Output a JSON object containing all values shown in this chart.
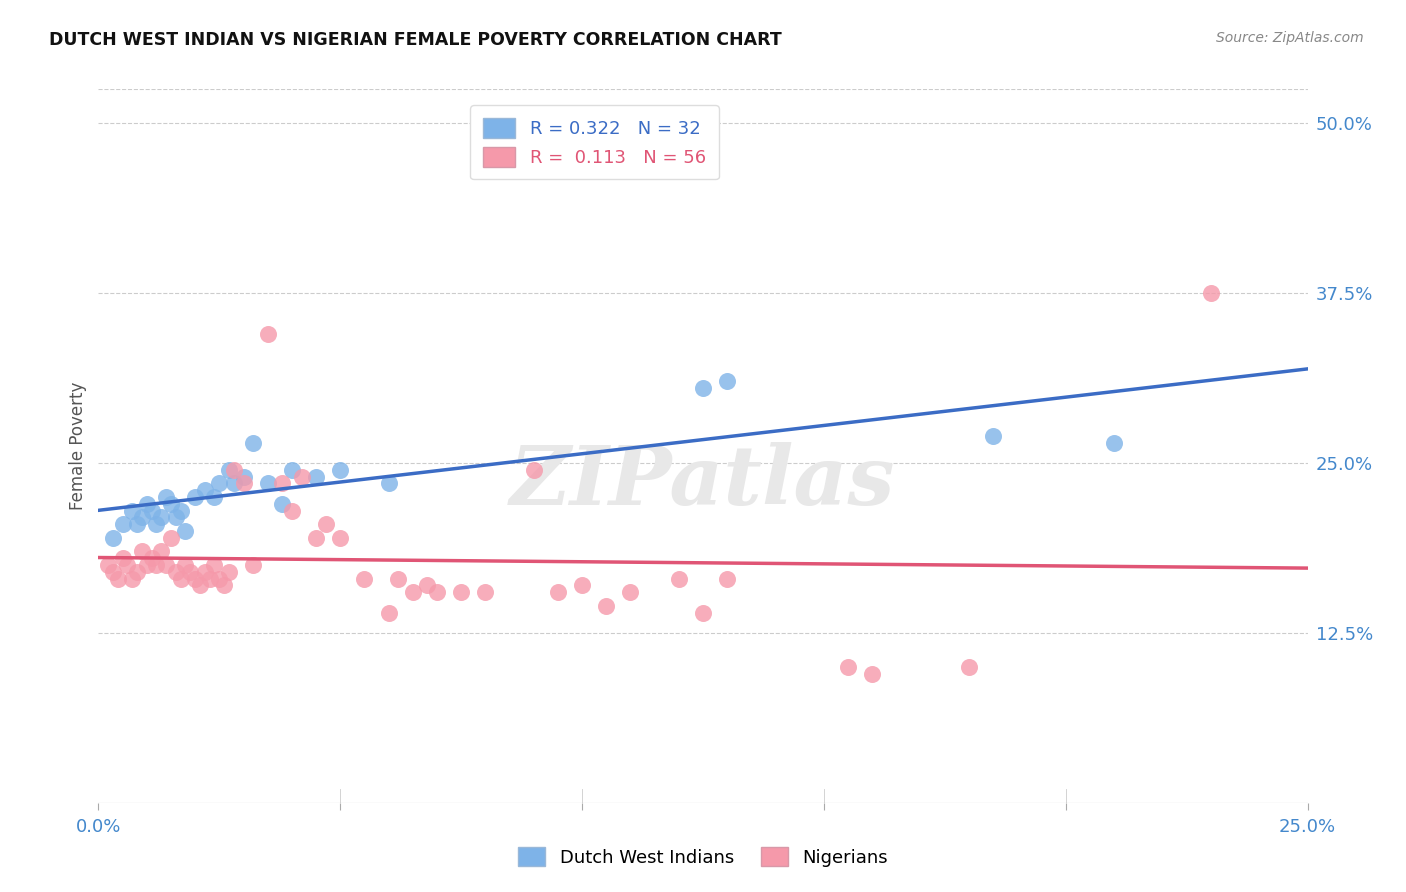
{
  "title": "DUTCH WEST INDIAN VS NIGERIAN FEMALE POVERTY CORRELATION CHART",
  "source": "Source: ZipAtlas.com",
  "ylabel": "Female Poverty",
  "ytick_labels": [
    "12.5%",
    "25.0%",
    "37.5%",
    "50.0%"
  ],
  "ytick_values": [
    0.125,
    0.25,
    0.375,
    0.5
  ],
  "xmin": 0.0,
  "xmax": 0.25,
  "ymin": 0.0,
  "ymax": 0.525,
  "blue_color": "#7EB3E8",
  "pink_color": "#F599AA",
  "blue_edge_color": "#5A8FC4",
  "pink_edge_color": "#E06080",
  "blue_line_color": "#3B6CC5",
  "pink_line_color": "#E05575",
  "blue_R": "0.322",
  "blue_N": "32",
  "pink_R": "0.113",
  "pink_N": "56",
  "legend_label_blue": "Dutch West Indians",
  "legend_label_pink": "Nigerians",
  "watermark": "ZIPatlas",
  "tick_color": "#4488CC",
  "blue_points": [
    [
      0.003,
      0.195
    ],
    [
      0.005,
      0.205
    ],
    [
      0.007,
      0.215
    ],
    [
      0.008,
      0.205
    ],
    [
      0.009,
      0.21
    ],
    [
      0.01,
      0.22
    ],
    [
      0.011,
      0.215
    ],
    [
      0.012,
      0.205
    ],
    [
      0.013,
      0.21
    ],
    [
      0.014,
      0.225
    ],
    [
      0.015,
      0.22
    ],
    [
      0.016,
      0.21
    ],
    [
      0.017,
      0.215
    ],
    [
      0.018,
      0.2
    ],
    [
      0.02,
      0.225
    ],
    [
      0.022,
      0.23
    ],
    [
      0.024,
      0.225
    ],
    [
      0.025,
      0.235
    ],
    [
      0.027,
      0.245
    ],
    [
      0.028,
      0.235
    ],
    [
      0.03,
      0.24
    ],
    [
      0.032,
      0.265
    ],
    [
      0.035,
      0.235
    ],
    [
      0.038,
      0.22
    ],
    [
      0.04,
      0.245
    ],
    [
      0.045,
      0.24
    ],
    [
      0.05,
      0.245
    ],
    [
      0.06,
      0.235
    ],
    [
      0.125,
      0.305
    ],
    [
      0.13,
      0.31
    ],
    [
      0.185,
      0.27
    ],
    [
      0.21,
      0.265
    ]
  ],
  "pink_points": [
    [
      0.002,
      0.175
    ],
    [
      0.003,
      0.17
    ],
    [
      0.004,
      0.165
    ],
    [
      0.005,
      0.18
    ],
    [
      0.006,
      0.175
    ],
    [
      0.007,
      0.165
    ],
    [
      0.008,
      0.17
    ],
    [
      0.009,
      0.185
    ],
    [
      0.01,
      0.175
    ],
    [
      0.011,
      0.18
    ],
    [
      0.012,
      0.175
    ],
    [
      0.013,
      0.185
    ],
    [
      0.014,
      0.175
    ],
    [
      0.015,
      0.195
    ],
    [
      0.016,
      0.17
    ],
    [
      0.017,
      0.165
    ],
    [
      0.018,
      0.175
    ],
    [
      0.019,
      0.17
    ],
    [
      0.02,
      0.165
    ],
    [
      0.021,
      0.16
    ],
    [
      0.022,
      0.17
    ],
    [
      0.023,
      0.165
    ],
    [
      0.024,
      0.175
    ],
    [
      0.025,
      0.165
    ],
    [
      0.026,
      0.16
    ],
    [
      0.027,
      0.17
    ],
    [
      0.028,
      0.245
    ],
    [
      0.03,
      0.235
    ],
    [
      0.032,
      0.175
    ],
    [
      0.035,
      0.345
    ],
    [
      0.038,
      0.235
    ],
    [
      0.04,
      0.215
    ],
    [
      0.042,
      0.24
    ],
    [
      0.045,
      0.195
    ],
    [
      0.047,
      0.205
    ],
    [
      0.05,
      0.195
    ],
    [
      0.055,
      0.165
    ],
    [
      0.06,
      0.14
    ],
    [
      0.062,
      0.165
    ],
    [
      0.065,
      0.155
    ],
    [
      0.068,
      0.16
    ],
    [
      0.07,
      0.155
    ],
    [
      0.075,
      0.155
    ],
    [
      0.08,
      0.155
    ],
    [
      0.09,
      0.245
    ],
    [
      0.095,
      0.155
    ],
    [
      0.1,
      0.16
    ],
    [
      0.105,
      0.145
    ],
    [
      0.11,
      0.155
    ],
    [
      0.12,
      0.165
    ],
    [
      0.125,
      0.14
    ],
    [
      0.13,
      0.165
    ],
    [
      0.155,
      0.1
    ],
    [
      0.16,
      0.095
    ],
    [
      0.18,
      0.1
    ],
    [
      0.23,
      0.375
    ]
  ]
}
